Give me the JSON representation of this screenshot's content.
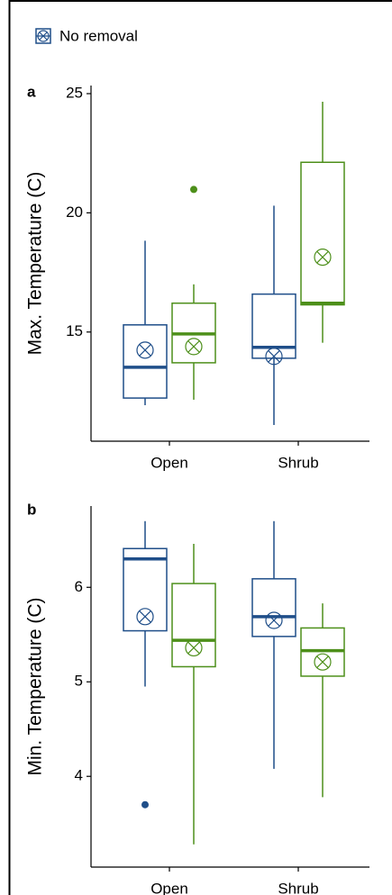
{
  "chart_data": [
    {
      "type": "box",
      "panel": "a",
      "y_label": "Max. Temperature (C)",
      "categories": [
        "Open",
        "Shrub"
      ],
      "ylim": [
        10.42,
        25.34
      ],
      "yticks": [
        15,
        20,
        25
      ],
      "series": [
        {
          "name": "No removal",
          "color": "#1f4e89",
          "values": [
            {
              "min": 11.93,
              "q1": 12.23,
              "median": 13.52,
              "q3": 15.3,
              "max": 18.83,
              "mean": 14.24,
              "outliers": []
            },
            {
              "min": 11.1,
              "q1": 13.9,
              "median": 14.36,
              "q3": 16.59,
              "max": 20.3,
              "mean": 13.98,
              "outliers": []
            }
          ]
        },
        {
          "color": "#4d8f1a",
          "values": [
            {
              "min": 12.16,
              "q1": 13.71,
              "median": 14.92,
              "q3": 16.21,
              "max": 17.0,
              "mean": 14.39,
              "outliers": [
                20.98
              ]
            },
            {
              "min": 14.55,
              "q1": 16.14,
              "median": 16.21,
              "q3": 22.12,
              "max": 24.66,
              "mean": 18.14,
              "outliers": []
            }
          ]
        }
      ]
    },
    {
      "type": "box",
      "panel": "b",
      "y_label": "Min. Temperature (C)",
      "categories": [
        "Open",
        "Shrub"
      ],
      "ylim": [
        3.04,
        6.86
      ],
      "yticks": [
        4,
        5,
        6
      ],
      "series": [
        {
          "color": "#1f4e89",
          "values": [
            {
              "min": 4.95,
              "q1": 5.54,
              "median": 6.3,
              "q3": 6.41,
              "max": 6.7,
              "mean": 5.69,
              "outliers": [
                3.7
              ]
            },
            {
              "min": 4.08,
              "q1": 5.48,
              "median": 5.69,
              "q3": 6.09,
              "max": 6.7,
              "mean": 5.65,
              "outliers": []
            }
          ]
        },
        {
          "color": "#4d8f1a",
          "values": [
            {
              "min": 3.28,
              "q1": 5.16,
              "median": 5.44,
              "q3": 6.04,
              "max": 6.46,
              "mean": 5.36,
              "outliers": []
            },
            {
              "min": 3.78,
              "q1": 5.06,
              "median": 5.33,
              "q3": 5.57,
              "max": 5.83,
              "mean": 5.21,
              "outliers": []
            }
          ]
        }
      ]
    }
  ]
}
